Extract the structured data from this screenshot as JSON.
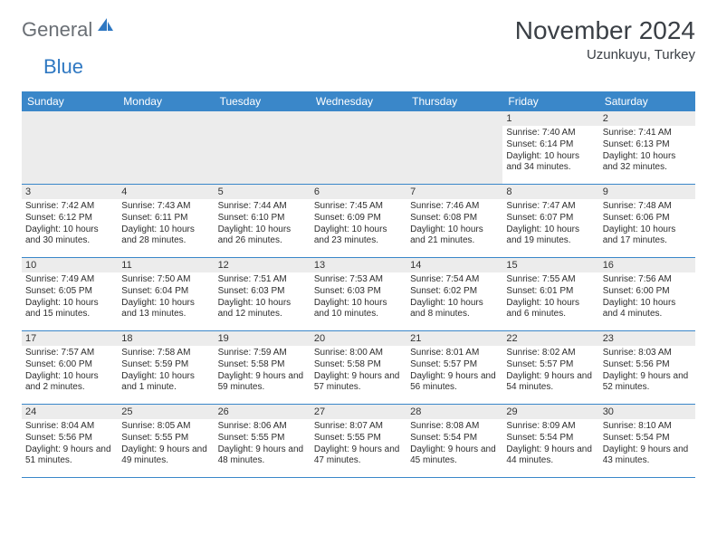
{
  "logo": {
    "text1": "General",
    "text2": "Blue"
  },
  "title": "November 2024",
  "subtitle": "Uzunkuyu, Turkey",
  "colors": {
    "header_bg": "#3a87c9",
    "header_text": "#ffffff",
    "numbar_bg": "#ececec",
    "border": "#3a87c9",
    "logo_gray": "#6a6f75",
    "logo_blue": "#2f78c2"
  },
  "dayHeaders": [
    "Sunday",
    "Monday",
    "Tuesday",
    "Wednesday",
    "Thursday",
    "Friday",
    "Saturday"
  ],
  "weeks": [
    [
      null,
      null,
      null,
      null,
      null,
      {
        "n": "1",
        "sr": "7:40 AM",
        "ss": "6:14 PM",
        "dl": "10 hours and 34 minutes."
      },
      {
        "n": "2",
        "sr": "7:41 AM",
        "ss": "6:13 PM",
        "dl": "10 hours and 32 minutes."
      }
    ],
    [
      {
        "n": "3",
        "sr": "7:42 AM",
        "ss": "6:12 PM",
        "dl": "10 hours and 30 minutes."
      },
      {
        "n": "4",
        "sr": "7:43 AM",
        "ss": "6:11 PM",
        "dl": "10 hours and 28 minutes."
      },
      {
        "n": "5",
        "sr": "7:44 AM",
        "ss": "6:10 PM",
        "dl": "10 hours and 26 minutes."
      },
      {
        "n": "6",
        "sr": "7:45 AM",
        "ss": "6:09 PM",
        "dl": "10 hours and 23 minutes."
      },
      {
        "n": "7",
        "sr": "7:46 AM",
        "ss": "6:08 PM",
        "dl": "10 hours and 21 minutes."
      },
      {
        "n": "8",
        "sr": "7:47 AM",
        "ss": "6:07 PM",
        "dl": "10 hours and 19 minutes."
      },
      {
        "n": "9",
        "sr": "7:48 AM",
        "ss": "6:06 PM",
        "dl": "10 hours and 17 minutes."
      }
    ],
    [
      {
        "n": "10",
        "sr": "7:49 AM",
        "ss": "6:05 PM",
        "dl": "10 hours and 15 minutes."
      },
      {
        "n": "11",
        "sr": "7:50 AM",
        "ss": "6:04 PM",
        "dl": "10 hours and 13 minutes."
      },
      {
        "n": "12",
        "sr": "7:51 AM",
        "ss": "6:03 PM",
        "dl": "10 hours and 12 minutes."
      },
      {
        "n": "13",
        "sr": "7:53 AM",
        "ss": "6:03 PM",
        "dl": "10 hours and 10 minutes."
      },
      {
        "n": "14",
        "sr": "7:54 AM",
        "ss": "6:02 PM",
        "dl": "10 hours and 8 minutes."
      },
      {
        "n": "15",
        "sr": "7:55 AM",
        "ss": "6:01 PM",
        "dl": "10 hours and 6 minutes."
      },
      {
        "n": "16",
        "sr": "7:56 AM",
        "ss": "6:00 PM",
        "dl": "10 hours and 4 minutes."
      }
    ],
    [
      {
        "n": "17",
        "sr": "7:57 AM",
        "ss": "6:00 PM",
        "dl": "10 hours and 2 minutes."
      },
      {
        "n": "18",
        "sr": "7:58 AM",
        "ss": "5:59 PM",
        "dl": "10 hours and 1 minute."
      },
      {
        "n": "19",
        "sr": "7:59 AM",
        "ss": "5:58 PM",
        "dl": "9 hours and 59 minutes."
      },
      {
        "n": "20",
        "sr": "8:00 AM",
        "ss": "5:58 PM",
        "dl": "9 hours and 57 minutes."
      },
      {
        "n": "21",
        "sr": "8:01 AM",
        "ss": "5:57 PM",
        "dl": "9 hours and 56 minutes."
      },
      {
        "n": "22",
        "sr": "8:02 AM",
        "ss": "5:57 PM",
        "dl": "9 hours and 54 minutes."
      },
      {
        "n": "23",
        "sr": "8:03 AM",
        "ss": "5:56 PM",
        "dl": "9 hours and 52 minutes."
      }
    ],
    [
      {
        "n": "24",
        "sr": "8:04 AM",
        "ss": "5:56 PM",
        "dl": "9 hours and 51 minutes."
      },
      {
        "n": "25",
        "sr": "8:05 AM",
        "ss": "5:55 PM",
        "dl": "9 hours and 49 minutes."
      },
      {
        "n": "26",
        "sr": "8:06 AM",
        "ss": "5:55 PM",
        "dl": "9 hours and 48 minutes."
      },
      {
        "n": "27",
        "sr": "8:07 AM",
        "ss": "5:55 PM",
        "dl": "9 hours and 47 minutes."
      },
      {
        "n": "28",
        "sr": "8:08 AM",
        "ss": "5:54 PM",
        "dl": "9 hours and 45 minutes."
      },
      {
        "n": "29",
        "sr": "8:09 AM",
        "ss": "5:54 PM",
        "dl": "9 hours and 44 minutes."
      },
      {
        "n": "30",
        "sr": "8:10 AM",
        "ss": "5:54 PM",
        "dl": "9 hours and 43 minutes."
      }
    ]
  ],
  "labels": {
    "sunrise": "Sunrise: ",
    "sunset": "Sunset: ",
    "daylight": "Daylight: "
  }
}
